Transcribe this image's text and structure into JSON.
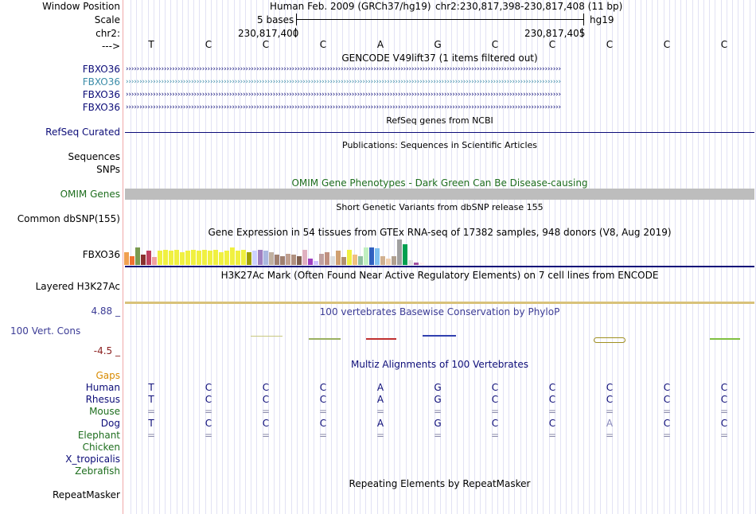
{
  "colors": {
    "navy": "#0c0c78",
    "teal": "#3b8ca8",
    "green": "#1e6e1e",
    "orange": "#d88a00",
    "conservation": "#3c3c96",
    "negative": "#8b2020",
    "omim_bar": "#bdbdbd",
    "h3k27_bar": "#d9c27a",
    "gridline": "#e2e2f4",
    "divider": "#f0a8a8"
  },
  "ruler": {
    "window_position_label": "Window Position",
    "scale_label": "Scale",
    "chrom_label": "chr2:",
    "strand_label": "--->",
    "assembly_text": "Human Feb. 2009 (GRCh37/hg19)",
    "position_text": "chr2:230,817,398-230,817,408 (11 bp)",
    "scale_value": "5 bases",
    "scale_db": "hg19",
    "tick_left": "230,817,400",
    "tick_right": "230,817,405"
  },
  "sequence": [
    "T",
    "C",
    "C",
    "C",
    "A",
    "G",
    "C",
    "C",
    "C",
    "C",
    "C"
  ],
  "tracks": {
    "gencode_title": "GENCODE V49lift37 (1 items filtered out)",
    "gencode_items": [
      "FBXO36",
      "FBXO36",
      "FBXO36",
      "FBXO36"
    ],
    "refseq_title": "RefSeq genes from NCBI",
    "refseq_label": "RefSeq Curated",
    "publications_title": "Publications: Sequences in Scientific Articles",
    "sequences_label": "Sequences",
    "snps_label": "SNPs",
    "omim_title": "OMIM Gene Phenotypes - Dark Green Can Be Disease-causing",
    "omim_label": "OMIM Genes",
    "dbsnp_title": "Short Genetic Variants from dbSNP release 155",
    "dbsnp_label": "Common dbSNP(155)",
    "gtex_title": "Gene Expression in 54 tissues from GTEx RNA-seq of 17382 samples, 948 donors (V8, Aug 2019)",
    "gtex_label": "FBXO36",
    "h3k27_title": "H3K27Ac Mark (Often Found Near Active Regulatory Elements) on 7 cell lines from ENCODE",
    "h3k27_label": "Layered H3K27Ac",
    "phylop_title": "100 vertebrates Basewise Conservation by PhyloP",
    "phylop_label": "100 Vert. Cons",
    "phylop_max": "4.88 _",
    "phylop_min": "-4.5 _",
    "multiz_title": "Multiz Alignments of 100 Vertebrates",
    "gaps_label": "Gaps",
    "repeat_title": "Repeating Elements by RepeatMasker",
    "repeat_label": "RepeatMasker"
  },
  "gtex_values": [
    {
      "c": "#f0a050",
      "v": 0.5
    },
    {
      "c": "#f07030",
      "v": 0.35
    },
    {
      "c": "#7a9a50",
      "v": 0.7
    },
    {
      "c": "#8a3030",
      "v": 0.4
    },
    {
      "c": "#c04060",
      "v": 0.55
    },
    {
      "c": "#f0a0a0",
      "v": 0.3
    },
    {
      "c": "#f0f040",
      "v": 0.55
    },
    {
      "c": "#f0f040",
      "v": 0.6
    },
    {
      "c": "#f0f040",
      "v": 0.55
    },
    {
      "c": "#f0f040",
      "v": 0.6
    },
    {
      "c": "#f0f040",
      "v": 0.5
    },
    {
      "c": "#f0f040",
      "v": 0.55
    },
    {
      "c": "#f0f040",
      "v": 0.6
    },
    {
      "c": "#f0f040",
      "v": 0.55
    },
    {
      "c": "#f0f040",
      "v": 0.6
    },
    {
      "c": "#f0f040",
      "v": 0.55
    },
    {
      "c": "#f0f040",
      "v": 0.6
    },
    {
      "c": "#f0f040",
      "v": 0.5
    },
    {
      "c": "#f0f040",
      "v": 0.55
    },
    {
      "c": "#f0f040",
      "v": 0.7
    },
    {
      "c": "#f0f040",
      "v": 0.55
    },
    {
      "c": "#f0f040",
      "v": 0.6
    },
    {
      "c": "#a0a000",
      "v": 0.5
    },
    {
      "c": "#ccd0ff",
      "v": 0.55
    },
    {
      "c": "#a080c0",
      "v": 0.6
    },
    {
      "c": "#aab8e0",
      "v": 0.55
    },
    {
      "c": "#c0b0a0",
      "v": 0.5
    },
    {
      "c": "#a08070",
      "v": 0.4
    },
    {
      "c": "#a08070",
      "v": 0.35
    },
    {
      "c": "#c0a090",
      "v": 0.45
    },
    {
      "c": "#b09080",
      "v": 0.4
    },
    {
      "c": "#806050",
      "v": 0.35
    },
    {
      "c": "#e0b0c0",
      "v": 0.6
    },
    {
      "c": "#a040c0",
      "v": 0.25
    },
    {
      "c": "#d0c0ff",
      "v": 0.15
    },
    {
      "c": "#c0a0a0",
      "v": 0.45
    },
    {
      "c": "#c09080",
      "v": 0.5
    },
    {
      "c": "#dddddd",
      "v": 0.35
    },
    {
      "c": "#d0a070",
      "v": 0.55
    },
    {
      "c": "#b09070",
      "v": 0.3
    },
    {
      "c": "#f0f040",
      "v": 0.6
    },
    {
      "c": "#f0c080",
      "v": 0.4
    },
    {
      "c": "#90c0a0",
      "v": 0.35
    },
    {
      "c": "#c0f0c0",
      "v": 0.7
    },
    {
      "c": "#3060c0",
      "v": 0.7
    },
    {
      "c": "#80c0f0",
      "v": 0.65
    },
    {
      "c": "#d0b090",
      "v": 0.35
    },
    {
      "c": "#f0d0b0",
      "v": 0.25
    },
    {
      "c": "#b0a090",
      "v": 0.35
    },
    {
      "c": "#a0a0a0",
      "v": 1.0
    },
    {
      "c": "#00a050",
      "v": 0.8
    },
    {
      "c": "#e0e0e0",
      "v": 0.2
    },
    {
      "c": "#a050a0",
      "v": 0.1
    },
    {
      "c": "#fff0f0",
      "v": 0.1
    }
  ],
  "alignment": [
    {
      "species": "Human",
      "color": "#0c0c78",
      "bases": [
        "T",
        "C",
        "C",
        "C",
        "A",
        "G",
        "C",
        "C",
        "C",
        "C",
        "C"
      ]
    },
    {
      "species": "Rhesus",
      "color": "#0c0c78",
      "bases": [
        "T",
        "C",
        "C",
        "C",
        "A",
        "G",
        "C",
        "C",
        "C",
        "C",
        "C"
      ]
    },
    {
      "species": "Mouse",
      "color": "#1e6e1e",
      "bases": [
        "=",
        "=",
        "=",
        "=",
        "=",
        "=",
        "=",
        "=",
        "=",
        "=",
        "="
      ]
    },
    {
      "species": "Dog",
      "color": "#0c0c78",
      "bases": [
        "T",
        "C",
        "C",
        "C",
        "A",
        "G",
        "C",
        "C",
        "A",
        "C",
        "C"
      ]
    },
    {
      "species": "Elephant",
      "color": "#1e6e1e",
      "bases": [
        "=",
        "=",
        "=",
        "=",
        "=",
        "=",
        "=",
        "=",
        "=",
        "=",
        "="
      ]
    },
    {
      "species": "Chicken",
      "color": "#1e6e1e",
      "bases": []
    },
    {
      "species": "X_tropicalis",
      "color": "#0c0c78",
      "bases": []
    },
    {
      "species": "Zebrafish",
      "color": "#1e6e1e",
      "bases": []
    }
  ]
}
